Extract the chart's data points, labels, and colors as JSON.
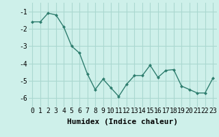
{
  "x": [
    0,
    1,
    2,
    3,
    4,
    5,
    6,
    7,
    8,
    9,
    10,
    11,
    12,
    13,
    14,
    15,
    16,
    17,
    18,
    19,
    20,
    21,
    22,
    23
  ],
  "y": [
    -1.6,
    -1.6,
    -1.1,
    -1.2,
    -1.9,
    -3.0,
    -3.4,
    -4.6,
    -5.5,
    -4.9,
    -5.4,
    -5.9,
    -5.2,
    -4.7,
    -4.7,
    -4.1,
    -4.8,
    -4.4,
    -4.35,
    -5.3,
    -5.5,
    -5.7,
    -5.7,
    -4.85
  ],
  "xlabel": "Humidex (Indice chaleur)",
  "xlim": [
    -0.5,
    23.5
  ],
  "ylim": [
    -6.5,
    -0.5
  ],
  "yticks": [
    -1,
    -2,
    -3,
    -4,
    -5,
    -6
  ],
  "xticks": [
    0,
    1,
    2,
    3,
    4,
    5,
    6,
    7,
    8,
    9,
    10,
    11,
    12,
    13,
    14,
    15,
    16,
    17,
    18,
    19,
    20,
    21,
    22,
    23
  ],
  "line_color": "#2e7d6e",
  "marker": "D",
  "marker_size": 2.5,
  "bg_color": "#cef0ea",
  "grid_color": "#aad8d0",
  "xlabel_fontsize": 8,
  "tick_fontsize": 7
}
